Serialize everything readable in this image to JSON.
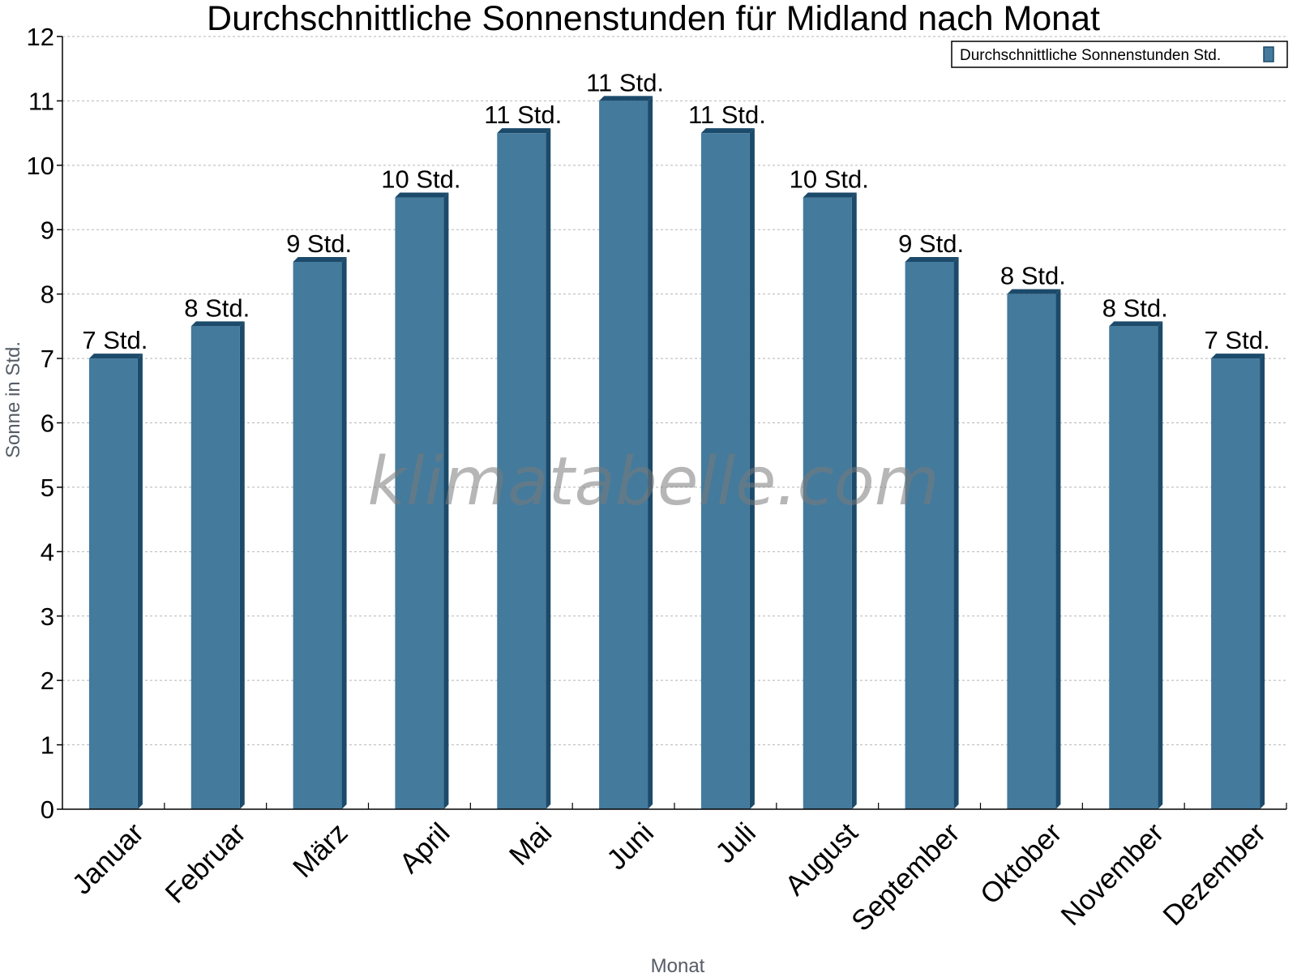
{
  "watermark": "klimatabelle.com",
  "chart_data": {
    "type": "bar",
    "title": "Durchschnittliche Sonnenstunden für Midland nach Monat",
    "xlabel": "Monat",
    "ylabel": "Sonne in Std.",
    "ylim": [
      0,
      12
    ],
    "yticks": [
      0,
      1,
      2,
      3,
      4,
      5,
      6,
      7,
      8,
      9,
      10,
      11,
      12
    ],
    "grid": true,
    "legend_position": "top-right",
    "categories": [
      "Januar",
      "Februar",
      "März",
      "April",
      "Mai",
      "Juni",
      "Juli",
      "August",
      "September",
      "Oktober",
      "November",
      "Dezember"
    ],
    "series": [
      {
        "name": "Durchschnittliche Sonnenstunden Std.",
        "color": "#447a9c",
        "values": [
          7,
          7.5,
          8.5,
          9.5,
          10.5,
          11,
          10.5,
          9.5,
          8.5,
          8,
          7.5,
          7
        ],
        "labels": [
          "7 Std.",
          "8 Std.",
          "9 Std.",
          "10 Std.",
          "11 Std.",
          "11 Std.",
          "11 Std.",
          "10 Std.",
          "9 Std.",
          "8 Std.",
          "8 Std.",
          "7 Std."
        ]
      }
    ]
  }
}
